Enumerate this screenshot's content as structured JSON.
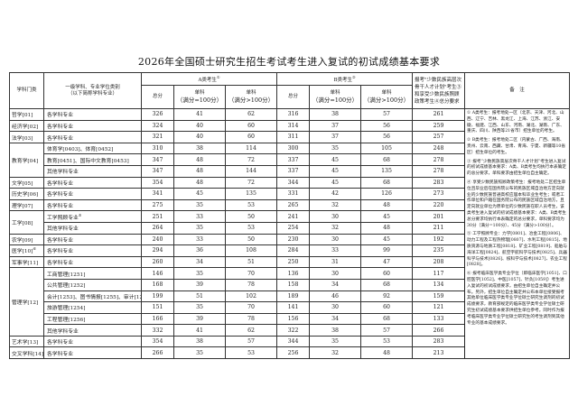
{
  "title": "2026年全国硕士研究生招生考试考生进入复试的初试成绩基本要求",
  "header": {
    "category": "学科门类",
    "subject_line1": "一级学科、专业学位类别",
    "subject_line2": "（以下简称学科专业）",
    "group_a": "A类考生",
    "group_a_sup": "①",
    "group_b": "B类考生",
    "group_b_sup": "②",
    "total": "总分",
    "single_100_line1": "单科",
    "single_100_line2": "（满分=100分）",
    "single_gt100_line1": "单科",
    "single_gt100_line2": "（满分>100分）",
    "minority": "报考\"少数民族高层次骨干人才计划\"考生③和享受少数民族照顾政策考生④总分要求",
    "notes": "备　注"
  },
  "groups": [
    {
      "category": "哲学[01]",
      "sup": "",
      "rows": [
        {
          "subject": "各学科专业",
          "sup": "",
          "a": [
            326,
            41,
            62
          ],
          "b": [
            316,
            38,
            57
          ],
          "m": 261
        }
      ]
    },
    {
      "category": "经济学[02]",
      "sup": "",
      "rows": [
        {
          "subject": "各学科专业",
          "sup": "",
          "a": [
            324,
            40,
            60
          ],
          "b": [
            314,
            37,
            56
          ],
          "m": 259
        }
      ]
    },
    {
      "category": "法学[03]",
      "sup": "",
      "rows": [
        {
          "subject": "各学科专业",
          "sup": "",
          "a": [
            321,
            40,
            60
          ],
          "b": [
            311,
            37,
            56
          ],
          "m": 257
        }
      ]
    },
    {
      "category": "教育学[04]",
      "sup": "",
      "rows": [
        {
          "subject": "体育学[0403]、体育[0452]",
          "sup": "",
          "a": [
            310,
            38,
            114
          ],
          "b": [
            300,
            35,
            105
          ],
          "m": 248
        },
        {
          "subject": "教育[0451]、国际中文教育[0453]",
          "sup": "",
          "a": [
            347,
            48,
            72
          ],
          "b": [
            337,
            45,
            68
          ],
          "m": 278
        },
        {
          "subject": "其他学科专业",
          "sup": "",
          "a": [
            347,
            48,
            144
          ],
          "b": [
            337,
            45,
            135
          ],
          "m": 278
        }
      ]
    },
    {
      "category": "文学[05]",
      "sup": "",
      "rows": [
        {
          "subject": "各学科专业",
          "sup": "",
          "a": [
            354,
            48,
            72
          ],
          "b": [
            344,
            45,
            68
          ],
          "m": 283
        }
      ]
    },
    {
      "category": "历史学[06]",
      "sup": "",
      "rows": [
        {
          "subject": "各学科专业",
          "sup": "",
          "a": [
            341,
            45,
            135
          ],
          "b": [
            331,
            42,
            126
          ],
          "m": 273
        }
      ]
    },
    {
      "category": "理学[07]",
      "sup": "",
      "rows": [
        {
          "subject": "各学科专业",
          "sup": "",
          "a": [
            275,
            35,
            53
          ],
          "b": [
            265,
            32,
            48
          ],
          "m": 220
        }
      ]
    },
    {
      "category": "工学[08]",
      "sup": "",
      "rows": [
        {
          "subject": "工学照顾专业",
          "sup": "⑤",
          "a": [
            251,
            33,
            50
          ],
          "b": [
            241,
            30,
            45
          ],
          "m": 201
        },
        {
          "subject": "其他学科专业",
          "sup": "",
          "a": [
            264,
            35,
            53
          ],
          "b": [
            254,
            32,
            48
          ],
          "m": 211
        }
      ]
    },
    {
      "category": "农学[09]",
      "sup": "",
      "rows": [
        {
          "subject": "各学科专业",
          "sup": "",
          "a": [
            240,
            33,
            50
          ],
          "b": [
            230,
            30,
            45
          ],
          "m": 192
        }
      ]
    },
    {
      "category": "医学[10]",
      "sup": "⑥",
      "rows": [
        {
          "subject": "各学科专业",
          "sup": "",
          "a": [
            294,
            36,
            108
          ],
          "b": [
            284,
            33,
            99
          ],
          "m": 235
        }
      ]
    },
    {
      "category": "军事学[11]",
      "sup": "",
      "rows": [
        {
          "subject": "各学科专业",
          "sup": "",
          "a": [
            260,
            34,
            51
          ],
          "b": [
            250,
            31,
            47
          ],
          "m": 208
        }
      ]
    },
    {
      "category": "管理学[12]",
      "sup": "",
      "rows": [
        {
          "subject": "工商管理[1251]",
          "sup": "",
          "a": [
            146,
            35,
            70
          ],
          "b": [
            136,
            30,
            60
          ],
          "m": 117
        },
        {
          "subject": "公共管理[1252]",
          "sup": "",
          "a": [
            168,
            39,
            78
          ],
          "b": [
            158,
            34,
            68
          ],
          "m": 134
        },
        {
          "subject": "会计[1253]、图书情报[1255]、审计[1257]",
          "sup": "",
          "a": [
            199,
            51,
            102
          ],
          "b": [
            189,
            46,
            92
          ],
          "m": 159
        },
        {
          "subject": "旅游管理[1254]",
          "sup": "",
          "a": [
            151,
            35,
            70
          ],
          "b": [
            141,
            30,
            60
          ],
          "m": 121
        },
        {
          "subject": "工程管理[1256]",
          "sup": "",
          "a": [
            166,
            39,
            78
          ],
          "b": [
            156,
            34,
            68
          ],
          "m": 133
        },
        {
          "subject": "其他学科专业",
          "sup": "",
          "a": [
            332,
            41,
            62
          ],
          "b": [
            322,
            38,
            57
          ],
          "m": 266
        }
      ]
    },
    {
      "category": "艺术学[13]",
      "sup": "",
      "rows": [
        {
          "subject": "各学科专业",
          "sup": "",
          "a": [
            354,
            38,
            57
          ],
          "b": [
            344,
            35,
            53
          ],
          "m": 283
        }
      ]
    },
    {
      "category": "交叉学科[14]",
      "sup": "",
      "rows": [
        {
          "subject": "各学科专业",
          "sup": "",
          "a": [
            266,
            35,
            53
          ],
          "b": [
            256,
            32,
            48
          ],
          "m": 213
        }
      ]
    }
  ],
  "notes": [
    "① A类考生：报考地处一区（北京、天津、河北、山西、辽宁、吉林、黑龙江、上海、江苏、浙江、安徽、福建、江西、山东、河南、湖北、湖南、广东、重庆、四川、陕西等21省市）招生单位的考生。",
    "② B类考生：报考地处二区（内蒙古、广西、海南、贵州、云南、西藏、甘肃、青海、宁夏、新疆等10省区）招生单位的考生。",
    "③ 报考“少数民族高层次骨干人才计划”考生进入复试的初试成绩基本要求：A类、B类考生均执行本表确定的总分要求，单科要求由招生单位自主确定。",
    "④ 享受少数民族照顾政策考生：报考地处二区招生单位且毕业后在国务院公布的民族区域自治地方定向就业的少数民族普通高校应届本科毕业生考生；或者工作单位和户籍在国务院公布的民族区域自治地方，且定向就业单位为原单位的少数民族在职人员考生，该类考生进入复试的初试成绩基本要求：A类、B类考生总分要求均执行本表确定的总分要求，单科要求均为30分（满分=100分）、45分（满分>100分）。",
    "⑤ 工学照顾专业：力学[0801]、冶金工程[0806]、动力工程及工程热物理[0807]、水利工程[0815]、地质资源与地质工程[0818]、矿业工程[0819]、船舶与海洋工程[0824]、航空宇航科学与技术[0825]、兵器科学与技术[0826]、核科学与技术[0827]、农业工程[0828]。",
    "⑥ 报考临床医学类专业学位（即临床医学[1051]、口腔医学[1052]、中医[1057]、针灸[1059]）考生进入复试的初试成绩要求，由招生单位自主确定并公布。另外，招生单位自主确定并公布本单位接受报考其他单位临床医学类专业学位硕士研究生调剂的初试成绩要求，教育部规定的临床医学类专业学位硕士研究生初试成绩基本要求供招生单位参考。同时作为报考临床医学类专业学位硕士研究生的考生调剂到其他专业的基本成绩要求。"
  ]
}
